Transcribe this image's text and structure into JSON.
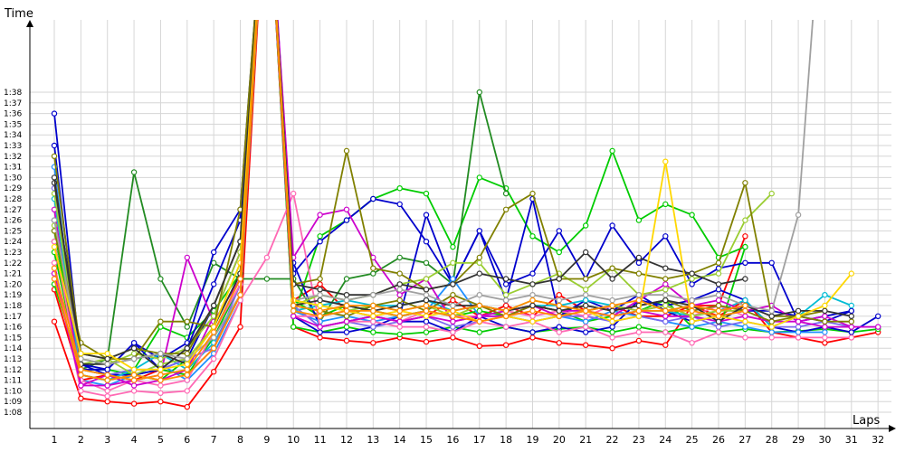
{
  "chart_data": {
    "type": "line",
    "xlabel": "Laps",
    "ylabel": "Time",
    "x": [
      1,
      2,
      3,
      4,
      5,
      6,
      7,
      8,
      9,
      10,
      11,
      12,
      13,
      14,
      15,
      16,
      17,
      18,
      19,
      20,
      21,
      22,
      23,
      24,
      25,
      26,
      27,
      28,
      29,
      30,
      31,
      32
    ],
    "x_ticks": [
      "1",
      "2",
      "3",
      "4",
      "5",
      "6",
      "7",
      "8",
      "9",
      "10",
      "11",
      "12",
      "13",
      "14",
      "15",
      "16",
      "17",
      "18",
      "19",
      "20",
      "21",
      "22",
      "23",
      "24",
      "25",
      "26",
      "27",
      "28",
      "29",
      "30",
      "31",
      "32"
    ],
    "y_ticks": [
      "1:08",
      "1:09",
      "1:10",
      "1:11",
      "1:12",
      "1:13",
      "1:14",
      "1:15",
      "1:16",
      "1:17",
      "1:18",
      "1:19",
      "1:20",
      "1:21",
      "1:22",
      "1:23",
      "1:24",
      "1:25",
      "1:26",
      "1:27",
      "1:28",
      "1:29",
      "1:30",
      "1:31",
      "1:32",
      "1:33",
      "1:34",
      "1:35",
      "1:36",
      "1:37",
      "1:38"
    ],
    "ylim": [
      66.5,
      99.5
    ],
    "grid": true,
    "series": [
      {
        "color": "#ff0000",
        "values": [
          76.5,
          69.3,
          69,
          68.8,
          69,
          68.5,
          71.8,
          76,
          120,
          76,
          75,
          74.7,
          74.5,
          75,
          74.6,
          75,
          74.2,
          74.3,
          75,
          74.5,
          74.3,
          74,
          74.7,
          74.3,
          78,
          78,
          84.5,
          null,
          null,
          null,
          null,
          null
        ]
      },
      {
        "color": "#ff0000",
        "values": [
          79.5,
          71,
          71.5,
          71,
          72,
          71.5,
          74,
          79,
          120,
          78.5,
          80,
          77.5,
          77,
          76.5,
          77,
          78.5,
          77,
          78,
          77,
          79,
          77.5,
          78,
          77,
          77,
          78,
          77,
          78.5,
          75.5,
          75,
          74.5,
          75,
          75.5
        ]
      },
      {
        "color": "#00cc00",
        "values": [
          85,
          72,
          72,
          71.5,
          72,
          71.5,
          75,
          80,
          120,
          76,
          75.5,
          76,
          75.5,
          75.3,
          75.5,
          76,
          75.5,
          76,
          75.5,
          75.8,
          76,
          75.5,
          76,
          75.5,
          76,
          75.5,
          75.8,
          75.5,
          75.6,
          75.8,
          75.5,
          75.8
        ]
      },
      {
        "color": "#00cc00",
        "values": [
          83,
          71.5,
          71,
          71.5,
          71,
          73,
          76,
          81,
          120,
          78.5,
          77,
          78,
          77.5,
          77,
          77.5,
          77,
          77.5,
          77,
          78,
          77.5,
          76.5,
          77,
          77.5,
          78.5,
          76,
          75.5,
          83.5,
          null,
          null,
          null,
          null,
          null
        ]
      },
      {
        "color": "#00cc00",
        "values": [
          80,
          72,
          71.5,
          72,
          76,
          75,
          77.5,
          81,
          120,
          77,
          84.5,
          86,
          88,
          89,
          88.5,
          83.5,
          90,
          89,
          84.5,
          83,
          85.5,
          92.5,
          86,
          87.5,
          86.5,
          82.5,
          83.5,
          null,
          null,
          null,
          null,
          null
        ]
      },
      {
        "color": "#228b22",
        "values": [
          84,
          72,
          73,
          90.5,
          80.5,
          76,
          82,
          80.5,
          80.5,
          80.5,
          76.5,
          80.5,
          81,
          82.5,
          82,
          80,
          98,
          88.5,
          null,
          null,
          null,
          null,
          null,
          null,
          null,
          null,
          null,
          null,
          null,
          null,
          null,
          null
        ]
      },
      {
        "color": "#0000cc",
        "values": [
          96,
          72.5,
          71.5,
          71.5,
          72,
          73,
          78,
          84,
          120,
          82,
          76,
          76.5,
          77,
          76.5,
          76.5,
          75.5,
          77,
          76,
          75.5,
          76,
          75.5,
          76,
          78.5,
          78,
          78.5,
          79.5,
          78.5,
          76,
          75.5,
          76,
          75.5,
          77
        ]
      },
      {
        "color": "#0000cc",
        "values": [
          93,
          72,
          72,
          74.5,
          73,
          74.5,
          83,
          87,
          120,
          81,
          84,
          86,
          88,
          87.5,
          84,
          80,
          85,
          80,
          81,
          85,
          80.5,
          85.5,
          82,
          84.5,
          80,
          81.5,
          82,
          82,
          76.5,
          77,
          77.5,
          null
        ]
      },
      {
        "color": "#0000cc",
        "values": [
          86,
          72.5,
          72,
          74.5,
          72,
          74,
          80,
          86,
          120,
          77,
          75.5,
          75.5,
          76,
          77,
          86.5,
          80,
          85,
          78.5,
          88,
          77,
          78.5,
          77.5,
          79,
          77.5,
          76.5,
          77,
          77.5,
          77.5,
          77,
          76.5,
          77.5,
          null
        ]
      },
      {
        "color": "#1e90ff",
        "values": [
          91,
          71,
          70.5,
          71.5,
          72.5,
          71,
          73.5,
          78.5,
          120,
          77.5,
          76.5,
          77,
          76.5,
          77,
          77.5,
          80.5,
          77,
          77,
          76.5,
          77,
          76.5,
          77.5,
          77,
          76.5,
          76,
          76.5,
          76,
          75.5,
          75.5,
          75.5,
          null,
          null
        ]
      },
      {
        "color": "#00bcd4",
        "values": [
          88,
          71.5,
          71,
          72,
          73.5,
          72,
          74.5,
          79,
          120,
          77.5,
          78,
          78.5,
          78,
          78,
          78.5,
          77.5,
          78,
          77.5,
          78,
          78,
          78.5,
          78,
          77.5,
          77.5,
          77,
          77.5,
          78.5,
          76,
          77,
          79,
          78,
          null
        ]
      },
      {
        "color": "#7b68ee",
        "values": [
          89,
          72,
          71.5,
          72,
          72,
          73,
          74,
          80,
          120,
          78,
          76,
          76.5,
          76,
          76.5,
          77,
          76,
          76.5,
          77,
          76.5,
          77,
          77,
          76.5,
          77,
          76.5,
          77,
          76,
          76.5,
          76,
          76,
          76.5,
          76,
          76
        ]
      },
      {
        "color": "#ff69b4",
        "values": [
          82,
          70,
          69.5,
          70,
          69.8,
          70,
          73,
          78.5,
          82.5,
          88.5,
          76,
          76.5,
          76.5,
          76,
          76,
          75.5,
          76.5,
          76,
          76.5,
          75.5,
          76,
          75,
          75.5,
          75.5,
          74.5,
          75.5,
          75,
          75,
          75,
          75,
          75,
          null
        ]
      },
      {
        "color": "#ff69b4",
        "values": [
          84,
          71,
          70,
          71,
          70.5,
          71,
          75.5,
          80,
          120,
          77,
          77,
          77.5,
          77,
          76.5,
          77.5,
          77,
          77,
          77.5,
          77,
          77.5,
          77,
          78,
          77.5,
          78,
          77,
          78,
          77,
          null,
          null,
          null,
          null,
          null
        ]
      },
      {
        "color": "#cc00cc",
        "values": [
          87,
          70.5,
          71.5,
          70.5,
          71,
          72,
          77,
          83,
          120,
          82.5,
          86.5,
          87,
          82.5,
          79,
          80.5,
          76.5,
          77,
          77,
          78,
          77.5,
          77.5,
          77,
          78.5,
          80,
          78,
          78.5,
          77.5,
          78,
          76.5,
          77,
          76,
          76
        ]
      },
      {
        "color": "#cc00cc",
        "values": [
          81,
          70.5,
          70.5,
          71,
          71.5,
          82.5,
          76.5,
          80.5,
          120,
          77,
          76,
          76.5,
          77,
          76.5,
          77,
          76.5,
          77,
          77.5,
          78,
          77,
          77.5,
          77,
          77.5,
          77,
          77,
          76.5,
          77,
          76.5,
          76.5,
          76,
          76,
          null
        ]
      },
      {
        "color": "#9acd32",
        "values": [
          88.5,
          72.5,
          73,
          71.5,
          72.5,
          73,
          76,
          82,
          120,
          78,
          79,
          78.5,
          79,
          80,
          80.5,
          82,
          82,
          79,
          80,
          81,
          79.5,
          81.5,
          79,
          79.5,
          80.5,
          81,
          86,
          88.5,
          null,
          null,
          null,
          null
        ]
      },
      {
        "color": "#9acd32",
        "values": [
          85.5,
          73,
          72.5,
          73.5,
          73,
          74,
          77,
          83,
          120,
          78.5,
          78,
          77.5,
          78,
          77.5,
          78,
          77,
          78,
          77.5,
          78.5,
          78,
          77.5,
          78,
          77.5,
          78,
          77,
          77.5,
          77.5,
          null,
          null,
          null,
          null,
          null
        ]
      },
      {
        "color": "#808000",
        "values": [
          85,
          74.5,
          73,
          73,
          76.5,
          76.5,
          76,
          87,
          120,
          80,
          80.5,
          92.5,
          81.5,
          81,
          79.5,
          80,
          82.5,
          87,
          88.5,
          80.5,
          80.5,
          81.5,
          81,
          80.5,
          81,
          82,
          89.5,
          77,
          77,
          76.5,
          76.5,
          null
        ]
      },
      {
        "color": "#808000",
        "values": [
          92,
          73.5,
          73,
          74,
          73.5,
          73.5,
          78,
          84,
          120,
          78,
          77.5,
          77,
          78,
          78.5,
          77.5,
          79,
          78,
          77,
          78,
          77.5,
          78,
          77.5,
          78,
          78.5,
          77.5,
          78,
          77.5,
          76.5,
          77,
          77.5,
          null,
          null
        ]
      },
      {
        "color": "#333333",
        "values": [
          89.5,
          73.5,
          73,
          74,
          72,
          74,
          78,
          84,
          120,
          80,
          79.5,
          79,
          79,
          80,
          79.5,
          80,
          81,
          80.5,
          80,
          80.5,
          83,
          80.5,
          82.5,
          81.5,
          81,
          80,
          80.5,
          null,
          null,
          null,
          null,
          null
        ]
      },
      {
        "color": "#333333",
        "values": [
          90,
          72.5,
          72.5,
          73,
          73.5,
          72.5,
          76,
          81,
          120,
          78,
          78.5,
          78,
          77.5,
          78,
          78.5,
          78,
          78,
          77.5,
          78,
          77.5,
          78,
          77.5,
          78,
          78.5,
          78,
          76.5,
          78,
          77,
          77.5,
          77.5,
          77,
          null
        ]
      },
      {
        "color": "#a0a0a0",
        "values": [
          86,
          73,
          72.5,
          73,
          73.5,
          73,
          75,
          79,
          120,
          78.5,
          79,
          78.5,
          79,
          79.5,
          79,
          78,
          79,
          78.5,
          79,
          78.5,
          79,
          78.5,
          79,
          79,
          78.5,
          79,
          78,
          77.5,
          86.5,
          120,
          null,
          null
        ]
      },
      {
        "color": "#ffd700",
        "values": [
          83.5,
          73.5,
          73.5,
          72,
          72,
          72.5,
          76,
          82,
          120,
          78.5,
          78,
          77.5,
          77,
          77.5,
          77,
          77.5,
          76.5,
          77,
          76.5,
          77,
          77.5,
          76.5,
          77,
          91.5,
          76.5,
          77,
          76.5,
          76,
          77,
          78,
          81,
          null
        ]
      },
      {
        "color": "#ff8c00",
        "values": [
          80.5,
          71.5,
          71,
          71.5,
          71,
          71.5,
          74,
          79,
          120,
          77.5,
          77,
          77.5,
          77.5,
          77,
          77.5,
          77,
          76.5,
          77,
          77.5,
          77,
          77.5,
          77,
          77.5,
          77.5,
          77.5,
          77,
          77.5,
          null,
          null,
          null,
          null,
          null
        ]
      },
      {
        "color": "#ff8c00",
        "values": [
          81.5,
          72,
          71.5,
          71,
          71.5,
          72,
          75.5,
          80.5,
          120,
          78,
          77.5,
          78,
          78,
          77.5,
          78,
          77.5,
          78,
          77.5,
          78.5,
          78,
          77.5,
          78,
          78.5,
          77.5,
          78,
          77.5,
          78,
          null,
          null,
          null,
          null,
          null
        ]
      }
    ]
  }
}
